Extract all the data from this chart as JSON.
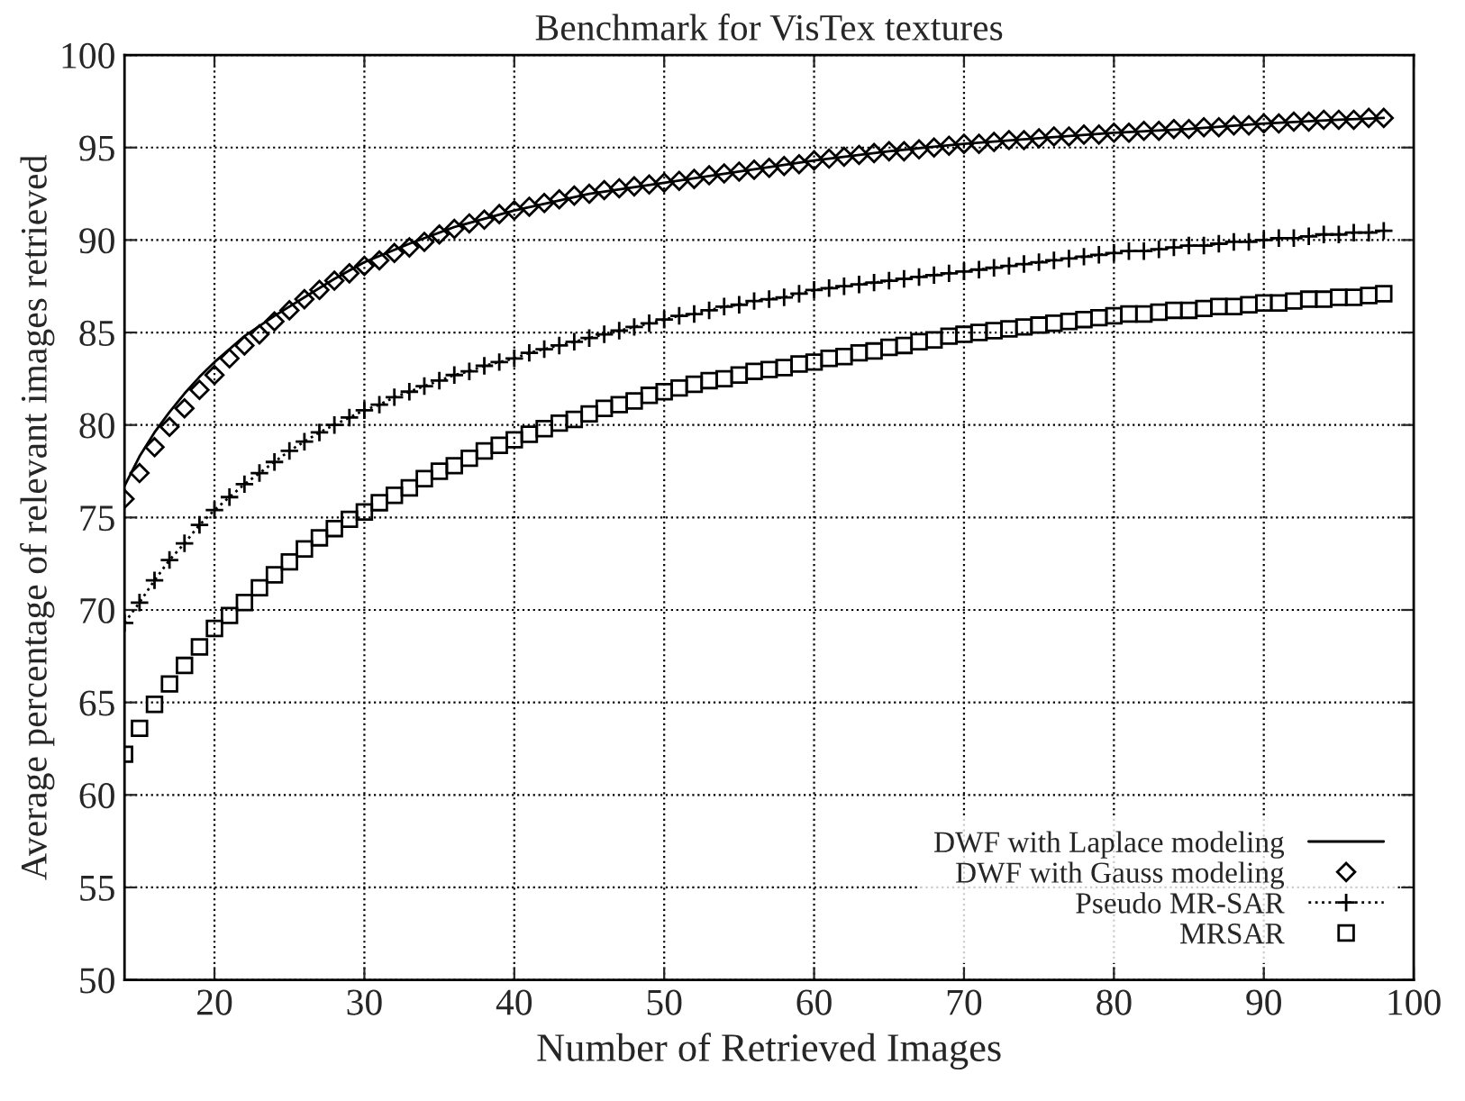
{
  "chart_data": {
    "type": "line",
    "title": "Benchmark for VisTex textures",
    "xlabel": "Number of Retrieved Images",
    "ylabel": "Average percentage of relevant images retrieved",
    "xlim": [
      14,
      100
    ],
    "xticks": [
      20,
      30,
      40,
      50,
      60,
      70,
      80,
      90,
      100
    ],
    "ylim": [
      50,
      100
    ],
    "yticks": [
      50,
      55,
      60,
      65,
      70,
      75,
      80,
      85,
      90,
      95,
      100
    ],
    "grid": true,
    "legend": "bottom right",
    "series": [
      {
        "name": "DWF with Laplace modeling",
        "type": "line",
        "color": "#000000",
        "marker": "none",
        "line_style": "solid",
        "x": [
          14,
          15,
          16,
          17,
          18,
          19,
          20,
          22,
          24,
          26,
          28,
          30,
          33,
          36,
          40,
          45,
          50,
          55,
          60,
          65,
          70,
          75,
          80,
          85,
          90,
          95,
          98
        ],
        "values": [
          76.7,
          78.3,
          79.6,
          80.7,
          81.7,
          82.6,
          83.4,
          84.8,
          85.9,
          86.9,
          87.9,
          88.8,
          89.8,
          90.7,
          91.6,
          92.5,
          93.1,
          93.7,
          94.3,
          94.8,
          95.2,
          95.5,
          95.8,
          96.0,
          96.3,
          96.5,
          96.6
        ]
      },
      {
        "name": "DWF with Gauss modeling",
        "type": "scatter",
        "color": "#000000",
        "marker": "diamond",
        "x": [
          14,
          15,
          16,
          17,
          18,
          19,
          20,
          21,
          22,
          23,
          24,
          25,
          26,
          27,
          28,
          29,
          30,
          31,
          32,
          33,
          34,
          35,
          36,
          37,
          38,
          39,
          40,
          41,
          42,
          43,
          44,
          45,
          46,
          47,
          48,
          49,
          50,
          51,
          52,
          53,
          54,
          55,
          56,
          57,
          58,
          59,
          60,
          61,
          62,
          63,
          64,
          65,
          66,
          67,
          68,
          69,
          70,
          71,
          72,
          73,
          74,
          75,
          76,
          77,
          78,
          79,
          80,
          81,
          82,
          83,
          84,
          85,
          86,
          87,
          88,
          89,
          90,
          91,
          92,
          93,
          94,
          95,
          96,
          97,
          98
        ],
        "values": [
          76.0,
          77.4,
          78.8,
          79.9,
          80.9,
          81.9,
          82.7,
          83.6,
          84.3,
          84.9,
          85.6,
          86.2,
          86.8,
          87.3,
          87.8,
          88.2,
          88.6,
          88.9,
          89.3,
          89.6,
          89.9,
          90.3,
          90.6,
          90.9,
          91.1,
          91.4,
          91.6,
          91.8,
          92.0,
          92.2,
          92.4,
          92.5,
          92.7,
          92.8,
          92.9,
          93.0,
          93.1,
          93.2,
          93.3,
          93.5,
          93.6,
          93.7,
          93.8,
          93.9,
          94.0,
          94.1,
          94.3,
          94.4,
          94.5,
          94.6,
          94.7,
          94.8,
          94.8,
          94.9,
          95.0,
          95.1,
          95.2,
          95.2,
          95.3,
          95.4,
          95.4,
          95.5,
          95.6,
          95.6,
          95.7,
          95.7,
          95.8,
          95.8,
          95.9,
          95.9,
          96.0,
          96.0,
          96.1,
          96.1,
          96.2,
          96.2,
          96.3,
          96.3,
          96.4,
          96.4,
          96.5,
          96.5,
          96.5,
          96.6,
          96.6
        ]
      },
      {
        "name": "Pseudo MR-SAR",
        "type": "line",
        "color": "#000000",
        "marker": "cross",
        "line_style": "dotted",
        "x": [
          14,
          15,
          16,
          17,
          18,
          19,
          20,
          21,
          22,
          23,
          24,
          25,
          26,
          27,
          28,
          29,
          30,
          31,
          32,
          33,
          34,
          35,
          36,
          37,
          38,
          39,
          40,
          41,
          42,
          43,
          44,
          45,
          46,
          47,
          48,
          49,
          50,
          51,
          52,
          53,
          54,
          55,
          56,
          57,
          58,
          59,
          60,
          61,
          62,
          63,
          64,
          65,
          66,
          67,
          68,
          69,
          70,
          71,
          72,
          73,
          74,
          75,
          76,
          77,
          78,
          79,
          80,
          81,
          82,
          83,
          84,
          85,
          86,
          87,
          88,
          89,
          90,
          91,
          92,
          93,
          94,
          95,
          96,
          97,
          98
        ],
        "values": [
          69.3,
          70.4,
          71.6,
          72.7,
          73.6,
          74.6,
          75.4,
          76.1,
          76.8,
          77.4,
          78.0,
          78.6,
          79.1,
          79.6,
          80.0,
          80.4,
          80.8,
          81.1,
          81.5,
          81.8,
          82.1,
          82.4,
          82.7,
          82.9,
          83.2,
          83.4,
          83.6,
          83.9,
          84.1,
          84.3,
          84.5,
          84.7,
          84.9,
          85.1,
          85.3,
          85.5,
          85.7,
          85.9,
          86.0,
          86.2,
          86.4,
          86.5,
          86.7,
          86.8,
          86.9,
          87.1,
          87.3,
          87.4,
          87.5,
          87.6,
          87.7,
          87.8,
          87.9,
          88.0,
          88.1,
          88.2,
          88.3,
          88.4,
          88.5,
          88.6,
          88.7,
          88.8,
          88.9,
          89.0,
          89.1,
          89.2,
          89.3,
          89.4,
          89.4,
          89.5,
          89.6,
          89.7,
          89.7,
          89.8,
          89.9,
          89.9,
          90.0,
          90.1,
          90.1,
          90.2,
          90.3,
          90.3,
          90.4,
          90.4,
          90.5
        ]
      },
      {
        "name": "MRSAR",
        "type": "scatter",
        "color": "#000000",
        "marker": "square",
        "x": [
          14,
          15,
          16,
          17,
          18,
          19,
          20,
          21,
          22,
          23,
          24,
          25,
          26,
          27,
          28,
          29,
          30,
          31,
          32,
          33,
          34,
          35,
          36,
          37,
          38,
          39,
          40,
          41,
          42,
          43,
          44,
          45,
          46,
          47,
          48,
          49,
          50,
          51,
          52,
          53,
          54,
          55,
          56,
          57,
          58,
          59,
          60,
          61,
          62,
          63,
          64,
          65,
          66,
          67,
          68,
          69,
          70,
          71,
          72,
          73,
          74,
          75,
          76,
          77,
          78,
          79,
          80,
          81,
          82,
          83,
          84,
          85,
          86,
          87,
          88,
          89,
          90,
          91,
          92,
          93,
          94,
          95,
          96,
          97,
          98
        ],
        "values": [
          62.2,
          63.6,
          64.9,
          66.0,
          67.0,
          68.0,
          69.0,
          69.7,
          70.4,
          71.2,
          71.9,
          72.6,
          73.3,
          73.9,
          74.4,
          74.9,
          75.3,
          75.8,
          76.2,
          76.6,
          77.1,
          77.5,
          77.8,
          78.2,
          78.6,
          78.9,
          79.2,
          79.5,
          79.8,
          80.1,
          80.3,
          80.6,
          80.9,
          81.1,
          81.3,
          81.6,
          81.8,
          82.0,
          82.2,
          82.4,
          82.5,
          82.7,
          82.9,
          83.0,
          83.1,
          83.3,
          83.4,
          83.6,
          83.7,
          83.9,
          84.0,
          84.2,
          84.3,
          84.5,
          84.6,
          84.8,
          84.9,
          85.0,
          85.1,
          85.2,
          85.3,
          85.4,
          85.5,
          85.6,
          85.7,
          85.8,
          85.9,
          86.0,
          86.0,
          86.1,
          86.2,
          86.2,
          86.3,
          86.4,
          86.4,
          86.5,
          86.6,
          86.6,
          86.7,
          86.8,
          86.8,
          86.9,
          86.9,
          87.0,
          87.1
        ]
      }
    ]
  }
}
